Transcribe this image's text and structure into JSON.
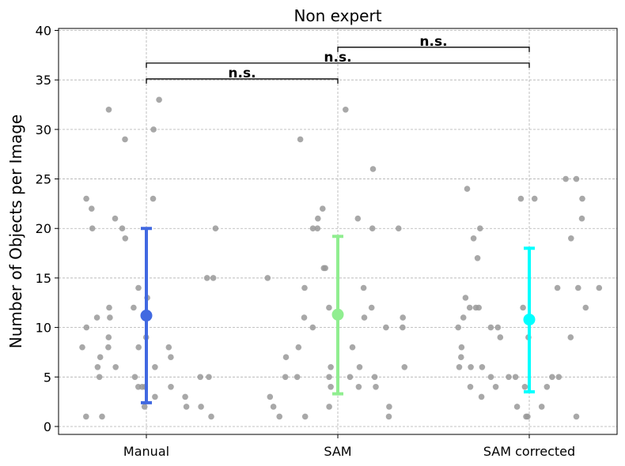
{
  "chart_data": {
    "type": "scatter",
    "title": "Non expert",
    "xlabel": "",
    "ylabel": "Number of Objects per Image",
    "categories": [
      "Manual",
      "SAM",
      "SAM corrected"
    ],
    "ylim": [
      -0.8,
      40.2
    ],
    "yticks": [
      0,
      5,
      10,
      15,
      20,
      25,
      30,
      35,
      40
    ],
    "grid": true,
    "colors": {
      "points": "#999999",
      "Manual": "#4169e1",
      "SAM": "#90ee90",
      "SAM corrected": "#00ffff"
    },
    "points": [
      {
        "category": "Manual",
        "values": [
          4,
          3,
          22,
          11,
          4,
          13,
          23,
          5,
          33,
          12,
          6,
          2,
          8,
          1,
          9,
          9,
          4,
          6,
          6,
          2,
          7,
          8,
          5,
          15,
          20,
          14,
          1,
          1,
          5,
          30,
          7,
          21,
          5,
          20,
          8,
          8,
          23,
          20,
          11,
          3,
          19,
          29,
          10,
          15,
          12,
          2,
          4,
          32
        ]
      },
      {
        "category": "SAM",
        "values": [
          8,
          16,
          5,
          6,
          7,
          8,
          4,
          1,
          2,
          16,
          14,
          4,
          10,
          20,
          12,
          11,
          5,
          10,
          6,
          2,
          11,
          29,
          20,
          5,
          1,
          4,
          1,
          6,
          20,
          2,
          26,
          21,
          32,
          3,
          10,
          20,
          5,
          22,
          11,
          12,
          14,
          11,
          15,
          21,
          5
        ]
      },
      {
        "category": "SAM corrected",
        "values": [
          23,
          6,
          14,
          12,
          23,
          2,
          4,
          12,
          19,
          12,
          4,
          8,
          20,
          5,
          14,
          5,
          21,
          10,
          1,
          6,
          11,
          12,
          7,
          23,
          25,
          14,
          12,
          9,
          13,
          10,
          1,
          24,
          5,
          5,
          9,
          9,
          17,
          3,
          10,
          4,
          4,
          5,
          19,
          1,
          2,
          6,
          25
        ]
      }
    ],
    "series": [
      {
        "category": "Manual",
        "mean": 11.2,
        "lower": 2.4,
        "upper": 20.0
      },
      {
        "category": "SAM",
        "mean": 11.3,
        "lower": 3.3,
        "upper": 19.2
      },
      {
        "category": "SAM corrected",
        "mean": 10.8,
        "lower": 3.5,
        "upper": 18.0
      }
    ],
    "annotations": [
      {
        "from": "Manual",
        "to": "SAM",
        "y": 35.1,
        "text": "n.s."
      },
      {
        "from": "Manual",
        "to": "SAM corrected",
        "y": 36.7,
        "text": "n.s."
      },
      {
        "from": "SAM",
        "to": "SAM corrected",
        "y": 38.3,
        "text": "n.s."
      }
    ]
  }
}
